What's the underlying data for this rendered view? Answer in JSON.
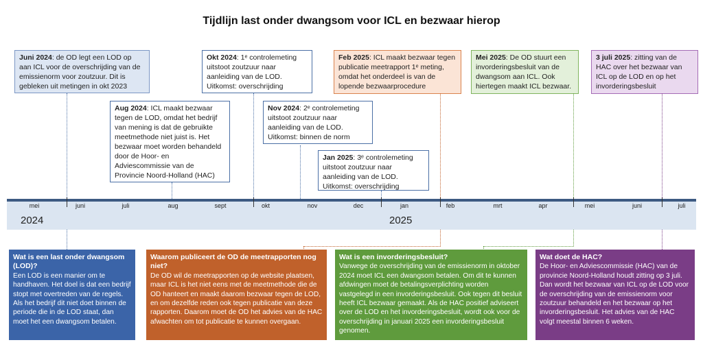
{
  "title": "Tijdlijn last onder dwangsom voor ICL en bezwaar hierop",
  "events": [
    {
      "date": "Juni 2024",
      "text": ": de OD legt een LOD op aan ICL voor de overschrijding van de emissienorm voor zoutzuur. Dit is gebleken uit metingen in okt 2023"
    },
    {
      "date": "Aug 2024",
      "text": ": ICL maakt bezwaar tegen de LOD, omdat het bedrijf van mening is dat de gebruikte meetmethode niet juist is. Het bezwaar moet worden behandeld door de Hoor- en Adviescommissie van de Provincie Noord-Holland (HAC)"
    },
    {
      "date": "Okt 2024",
      "text": ": 1ᵉ controlemeting uitstoot zoutzuur naar aanleiding van de LOD. Uitkomst: overschrijding"
    },
    {
      "date": "Nov 2024",
      "text": ": 2ᵉ controlemeting uitstoot zoutzuur naar aanleiding van de LOD. Uitkomst: binnen de norm"
    },
    {
      "date": "Jan 2025",
      "text": ": 3ᵉ controlemeting uitstoot zoutzuur naar aanleiding van de LOD. Uitkomst: overschrijding"
    },
    {
      "date": "Feb 2025",
      "text": ": ICL maakt bezwaar tegen publicatie meetrapport 1ᵉ meting, omdat het onderdeel is van de lopende bezwaarprocedure"
    },
    {
      "date": "Mei 2025",
      "text": ": De OD stuurt een invorderingsbesluit van de dwangsom aan ICL. Ook hiertegen maakt ICL bezwaar."
    },
    {
      "date": "3 juli 2025",
      "text": ": zitting van de HAC over het bezwaar van ICL op de LOD en op het invorderingsbesluit"
    }
  ],
  "months": [
    "mei",
    "juni",
    "juli",
    "aug",
    "sept",
    "okt",
    "nov",
    "dec",
    "jan",
    "feb",
    "mrt",
    "apr",
    "mei",
    "juni",
    "juli"
  ],
  "years": [
    "2024",
    "2025"
  ],
  "info": [
    {
      "heading": "Wat is een last onder dwangsom (LOD)?",
      "body": "Een LOD is een manier om te handhaven. Het doel is dat een bedrijf stopt met overtreden van de regels. Als het bedrijf dit niet doet binnen de periode die in de LOD staat, dan moet het een dwangsom betalen."
    },
    {
      "heading": "Waarom publiceert de OD de meetrapporten nog niet?",
      "body": "De OD wil de meetrapporten op de website plaatsen, maar ICL is het niet eens met de meetmethode die de OD hanteert en maakt daarom bezwaar tegen de LOD, en om dezelfde reden ook tegen publicatie van deze rapporten. Daarom moet de OD het advies van de HAC afwachten om tot publicatie te kunnen overgaan."
    },
    {
      "heading": "Wat is een invorderingsbesluit?",
      "body": "Vanwege de overschrijding van de emissienorm in oktober 2024 moet ICL een dwangsom betalen. Om dit te kunnen afdwingen moet de betalingsverplichting worden vastgelegd in een invorderingsbesluit. Ook tegen dit besluit heeft ICL bezwaar gemaakt. Als de HAC positief adviseert over de LOD en het invorderingsbesluit, wordt ook voor de overschrijding in januari 2025 een invorderingsbesluit genomen."
    },
    {
      "heading": "Wat doet de HAC?",
      "body": "De Hoor- en Adviescommissie (HAC) van de provincie Noord-Holland houdt zitting op 3 juli. Dan wordt het bezwaar van ICL op de LOD voor de overschrijding van de emissienorm voor zoutzuur behandeld en het bezwaar op het invorderingsbesluit. Het advies van de HAC volgt meestal binnen 6 weken."
    }
  ]
}
